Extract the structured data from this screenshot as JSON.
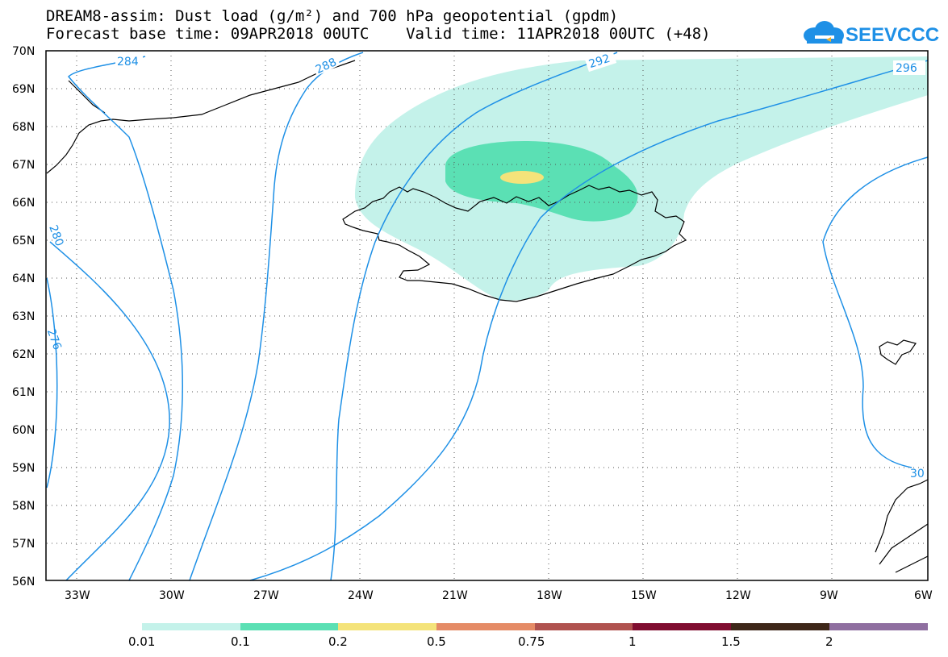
{
  "title": {
    "line1": "DREAM8-assim: Dust load (g/m²) and 700 hPa geopotential (gpdm)",
    "line2": "Forecast base time: 09APR2018 00UTC    Valid time: 11APR2018 00UTC (+48)"
  },
  "logo": {
    "text": "SEEVCCC",
    "color": "#1e90e6"
  },
  "map": {
    "lat_labels": [
      "70N",
      "69N",
      "68N",
      "67N",
      "66N",
      "65N",
      "64N",
      "63N",
      "62N",
      "61N",
      "60N",
      "59N",
      "58N",
      "57N",
      "56N"
    ],
    "lon_labels": [
      "33W",
      "30W",
      "27W",
      "24W",
      "21W",
      "18W",
      "15W",
      "12W",
      "9W",
      "6W"
    ],
    "contour_labels": [
      "284",
      "288",
      "292",
      "296",
      "280",
      "276",
      "30"
    ],
    "contour_color": "#1e90e6",
    "coast_color": "#000000"
  },
  "colorbar": {
    "labels": [
      "0.01",
      "0.1",
      "0.2",
      "0.5",
      "0.75",
      "1",
      "1.5",
      "2"
    ],
    "colors": [
      "#c4f2ea",
      "#5be0b4",
      "#f4e37a",
      "#e58b66",
      "#b0524f",
      "#800d30",
      "#3e2719",
      "#8f6fa0"
    ]
  }
}
